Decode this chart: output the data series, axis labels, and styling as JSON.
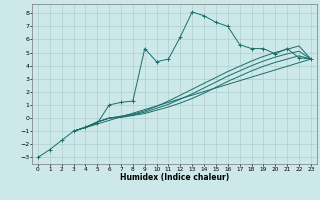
{
  "xlabel": "Humidex (Indice chaleur)",
  "bg_color": "#cde8e8",
  "grid_color": "#aed0d0",
  "line_color": "#1a6e6a",
  "xlim": [
    -0.5,
    23.5
  ],
  "ylim": [
    -3.5,
    8.7
  ],
  "yticks": [
    -3,
    -2,
    -1,
    0,
    1,
    2,
    3,
    4,
    5,
    6,
    7,
    8
  ],
  "xticks": [
    0,
    1,
    2,
    3,
    4,
    5,
    6,
    7,
    8,
    9,
    10,
    11,
    12,
    13,
    14,
    15,
    16,
    17,
    18,
    19,
    20,
    21,
    22,
    23
  ],
  "lines": [
    {
      "x": [
        0,
        1,
        2,
        3,
        4,
        5,
        6,
        7,
        8,
        9,
        10,
        11,
        12,
        13,
        14,
        15,
        16,
        17,
        18,
        19,
        20,
        21,
        22,
        23
      ],
      "y": [
        -3.0,
        -2.4,
        -1.7,
        -1.0,
        -0.7,
        -0.4,
        1.0,
        1.2,
        1.3,
        5.3,
        4.3,
        4.5,
        6.2,
        8.1,
        7.8,
        7.3,
        7.0,
        5.6,
        5.3,
        5.3,
        4.9,
        5.3,
        4.6,
        4.5
      ],
      "marker": "+"
    },
    {
      "x": [
        3,
        23
      ],
      "y": [
        -1.0,
        4.5
      ],
      "marker": null
    },
    {
      "x": [
        3,
        4,
        5,
        6,
        7,
        8,
        9,
        10,
        11,
        12,
        13,
        14,
        15,
        16,
        17,
        18,
        19,
        20,
        21,
        22,
        23
      ],
      "y": [
        -1.0,
        -0.7,
        -0.3,
        0.0,
        0.15,
        0.3,
        0.55,
        0.9,
        1.3,
        1.75,
        2.2,
        2.65,
        3.1,
        3.55,
        3.95,
        4.35,
        4.7,
        5.0,
        5.25,
        5.5,
        4.5
      ],
      "marker": null
    },
    {
      "x": [
        3,
        4,
        5,
        6,
        7,
        8,
        9,
        10,
        11,
        12,
        13,
        14,
        15,
        16,
        17,
        18,
        19,
        20,
        21,
        22,
        23
      ],
      "y": [
        -1.0,
        -0.7,
        -0.3,
        0.0,
        0.1,
        0.25,
        0.45,
        0.75,
        1.05,
        1.45,
        1.85,
        2.3,
        2.75,
        3.2,
        3.6,
        4.0,
        4.35,
        4.65,
        4.9,
        5.1,
        4.5
      ],
      "marker": null
    },
    {
      "x": [
        3,
        4,
        5,
        6,
        7,
        8,
        9,
        10,
        11,
        12,
        13,
        14,
        15,
        16,
        17,
        18,
        19,
        20,
        21,
        22,
        23
      ],
      "y": [
        -1.0,
        -0.7,
        -0.3,
        0.0,
        0.05,
        0.2,
        0.35,
        0.6,
        0.85,
        1.15,
        1.5,
        1.9,
        2.35,
        2.8,
        3.2,
        3.6,
        3.95,
        4.25,
        4.5,
        4.75,
        4.5
      ],
      "marker": null
    }
  ]
}
